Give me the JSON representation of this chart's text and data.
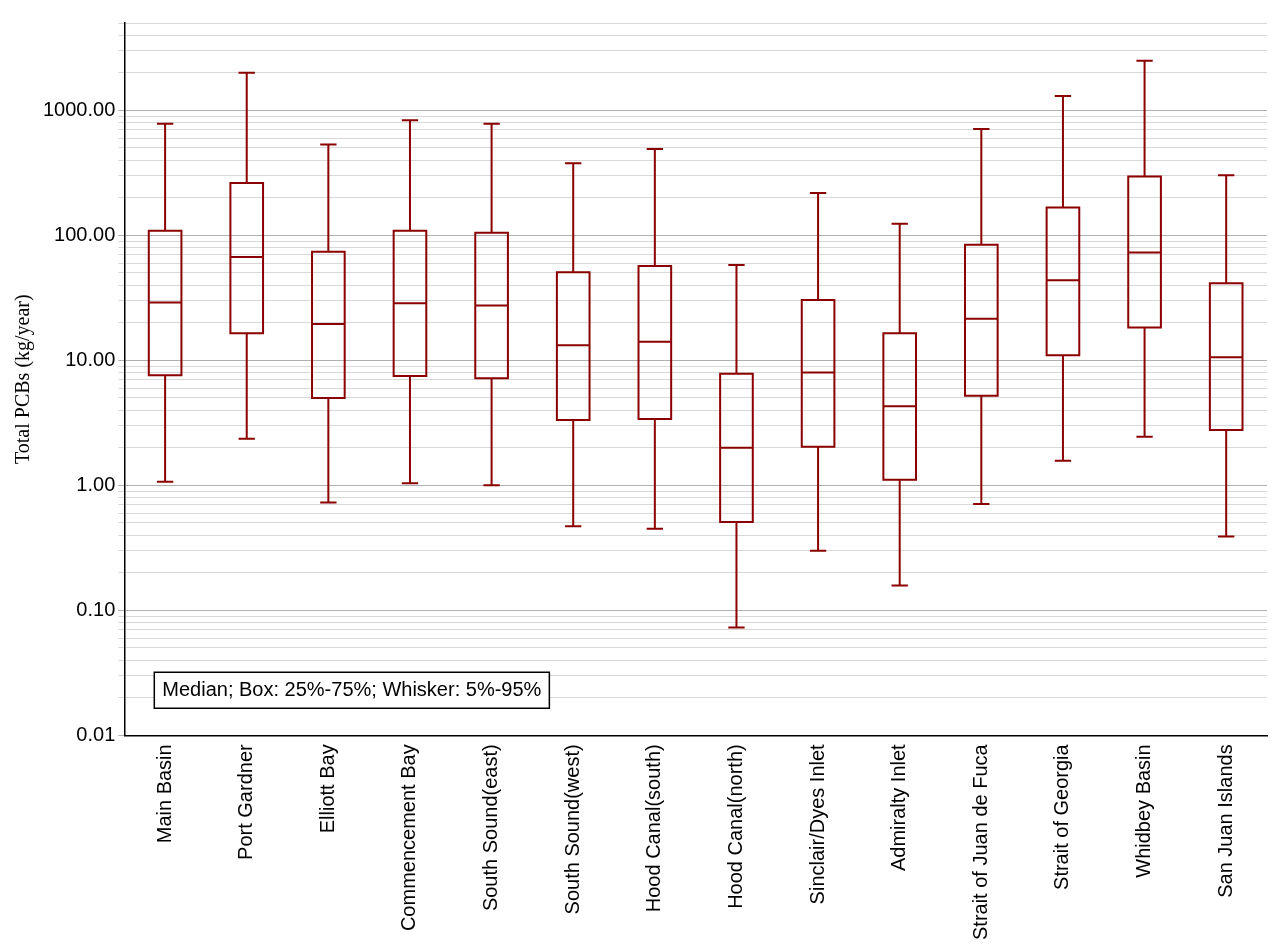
{
  "chart_data": {
    "type": "box",
    "ylabel": "Total PCBs (kg/year)",
    "log": "y",
    "grid": "y",
    "categories": [
      "Main Basin",
      "Port Gardner",
      "Elliott Bay",
      "Commencement Bay",
      "South Sound(east)",
      "South Sound(west)",
      "Hood Canal(south)",
      "Hood Canal(north)",
      "Sinclair/Dyes Inlet",
      "Admiralty Inlet",
      "Strait of Juan de Fuca",
      "Strait of Georgia",
      "Whidbey Basin",
      "San Juan Islands"
    ],
    "series": [
      {
        "color": "#8b0000",
        "boxes": [
          {
            "low": 1.07,
            "q1": 7.6,
            "median": 29,
            "q3": 109,
            "high": 783
          },
          {
            "low": 2.36,
            "q1": 16.5,
            "median": 67,
            "q3": 262,
            "high": 2000
          },
          {
            "low": 0.73,
            "q1": 5.0,
            "median": 19.5,
            "q3": 74,
            "high": 533
          },
          {
            "low": 1.04,
            "q1": 7.5,
            "median": 28.6,
            "q3": 109,
            "high": 833
          },
          {
            "low": 1.0,
            "q1": 7.2,
            "median": 27.5,
            "q3": 105,
            "high": 783
          },
          {
            "low": 0.47,
            "q1": 3.33,
            "median": 13.2,
            "q3": 50.6,
            "high": 377
          },
          {
            "low": 0.45,
            "q1": 3.4,
            "median": 14.1,
            "q3": 57,
            "high": 491
          },
          {
            "low": 0.073,
            "q1": 0.51,
            "median": 2.0,
            "q3": 7.8,
            "high": 58
          },
          {
            "low": 0.3,
            "q1": 2.04,
            "median": 8.0,
            "q3": 30.4,
            "high": 218
          },
          {
            "low": 0.158,
            "q1": 1.11,
            "median": 4.3,
            "q3": 16.5,
            "high": 124
          },
          {
            "low": 0.71,
            "q1": 5.2,
            "median": 21.5,
            "q3": 84,
            "high": 708
          },
          {
            "low": 1.57,
            "q1": 11.0,
            "median": 43.8,
            "q3": 167,
            "high": 1302
          },
          {
            "low": 2.45,
            "q1": 18.3,
            "median": 72.8,
            "q3": 296,
            "high": 2490
          },
          {
            "low": 0.39,
            "q1": 2.77,
            "median": 10.6,
            "q3": 41.3,
            "high": 302
          }
        ]
      }
    ],
    "ylim": [
      0.01,
      5000
    ],
    "yticks": [
      {
        "value": 0.01,
        "label": "0.01"
      },
      {
        "value": 0.02,
        "label": null
      },
      {
        "value": 0.03,
        "label": null
      },
      {
        "value": 0.04,
        "label": null
      },
      {
        "value": 0.05,
        "label": null
      },
      {
        "value": 0.06,
        "label": null
      },
      {
        "value": 0.07,
        "label": null
      },
      {
        "value": 0.08,
        "label": null
      },
      {
        "value": 0.09,
        "label": null
      },
      {
        "value": 0.1,
        "label": "0.10"
      },
      {
        "value": 0.2,
        "label": null
      },
      {
        "value": 0.3,
        "label": null
      },
      {
        "value": 0.4,
        "label": null
      },
      {
        "value": 0.5,
        "label": null
      },
      {
        "value": 0.6,
        "label": null
      },
      {
        "value": 0.7,
        "label": null
      },
      {
        "value": 0.8,
        "label": null
      },
      {
        "value": 0.9,
        "label": null
      },
      {
        "value": 1,
        "label": "1.00"
      },
      {
        "value": 2,
        "label": null
      },
      {
        "value": 3,
        "label": null
      },
      {
        "value": 4,
        "label": null
      },
      {
        "value": 5,
        "label": null
      },
      {
        "value": 6,
        "label": null
      },
      {
        "value": 7,
        "label": null
      },
      {
        "value": 8,
        "label": null
      },
      {
        "value": 9,
        "label": null
      },
      {
        "value": 10,
        "label": "10.00"
      },
      {
        "value": 20,
        "label": null
      },
      {
        "value": 30,
        "label": null
      },
      {
        "value": 40,
        "label": null
      },
      {
        "value": 50,
        "label": null
      },
      {
        "value": 60,
        "label": null
      },
      {
        "value": 70,
        "label": null
      },
      {
        "value": 80,
        "label": null
      },
      {
        "value": 90,
        "label": null
      },
      {
        "value": 100,
        "label": "100.00"
      },
      {
        "value": 200,
        "label": null
      },
      {
        "value": 300,
        "label": null
      },
      {
        "value": 400,
        "label": null
      },
      {
        "value": 500,
        "label": null
      },
      {
        "value": 600,
        "label": null
      },
      {
        "value": 700,
        "label": null
      },
      {
        "value": 800,
        "label": null
      },
      {
        "value": 900,
        "label": null
      },
      {
        "value": 1000,
        "label": "1000.00"
      },
      {
        "value": 2000,
        "label": null
      },
      {
        "value": 3000,
        "label": null
      },
      {
        "value": 4000,
        "label": null
      },
      {
        "value": 5000,
        "label": null
      }
    ],
    "annotations": [
      "Median; Box: 25%-75%; Whisker: 5%-95%"
    ]
  }
}
